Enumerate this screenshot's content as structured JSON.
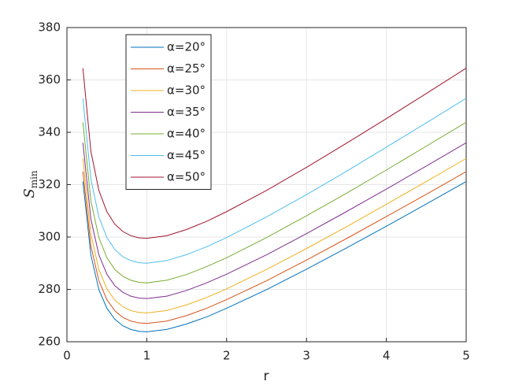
{
  "chart_data": {
    "type": "line",
    "xlabel": "r",
    "ylabel": "S",
    "ylabel_sub": "min",
    "x": [
      0.2,
      0.3,
      0.4,
      0.5,
      0.6,
      0.7,
      0.8,
      0.9,
      1,
      1.25,
      1.5,
      1.75,
      2,
      2.5,
      3,
      3.5,
      4,
      4.5,
      5
    ],
    "series": [
      {
        "name": "α=20°",
        "color": "#0072BD",
        "values": [
          321.2,
          293.1,
          279.9,
          272.8,
          268.6,
          266.1,
          264.7,
          264.0,
          263.8,
          264.7,
          266.8,
          269.5,
          272.8,
          279.9,
          287.7,
          295.8,
          304.1,
          312.6,
          321.2
        ]
      },
      {
        "name": "α=25°",
        "color": "#D95319",
        "values": [
          325.0,
          296.6,
          283.3,
          276.1,
          271.8,
          269.3,
          267.9,
          267.2,
          267.0,
          267.9,
          270.0,
          272.8,
          276.1,
          283.3,
          291.2,
          299.4,
          307.8,
          316.3,
          325.0
        ]
      },
      {
        "name": "α=30°",
        "color": "#EDB120",
        "values": [
          330.0,
          301.1,
          287.6,
          280.2,
          275.9,
          273.4,
          271.9,
          271.2,
          271.0,
          271.9,
          274.1,
          276.9,
          280.2,
          287.6,
          295.6,
          303.9,
          312.5,
          321.2,
          330.0
        ]
      },
      {
        "name": "α=35°",
        "color": "#7E2F8E",
        "values": [
          336.0,
          306.8,
          293.2,
          285.8,
          281.4,
          278.9,
          277.4,
          276.7,
          276.5,
          277.4,
          279.6,
          282.5,
          285.8,
          293.2,
          301.3,
          309.7,
          318.3,
          327.1,
          336.0
        ]
      },
      {
        "name": "α=40°",
        "color": "#77AC30",
        "values": [
          343.8,
          313.8,
          299.8,
          292.1,
          287.6,
          285.0,
          283.5,
          282.7,
          282.5,
          283.5,
          285.7,
          288.7,
          292.1,
          299.8,
          308.1,
          316.7,
          325.6,
          334.7,
          343.8
        ]
      },
      {
        "name": "α=45°",
        "color": "#4DBEEE",
        "values": [
          353.0,
          322.1,
          307.7,
          299.8,
          295.2,
          292.5,
          291.0,
          290.2,
          290.0,
          291.0,
          293.3,
          296.3,
          299.8,
          307.7,
          316.2,
          325.1,
          334.3,
          343.6,
          353.0
        ]
      },
      {
        "name": "α=50°",
        "color": "#A2142F",
        "values": [
          364.5,
          332.7,
          317.8,
          309.7,
          304.9,
          302.1,
          300.5,
          299.7,
          299.5,
          300.5,
          302.9,
          306.0,
          309.7,
          317.8,
          326.6,
          335.8,
          345.2,
          354.8,
          364.5
        ]
      }
    ],
    "xlim": [
      0,
      5
    ],
    "xticks": [
      0,
      1,
      2,
      3,
      4,
      5
    ],
    "ylim": [
      260,
      380
    ],
    "yticks": [
      260,
      280,
      300,
      320,
      340,
      360,
      380
    ],
    "grid": true,
    "legend": "northwest"
  }
}
